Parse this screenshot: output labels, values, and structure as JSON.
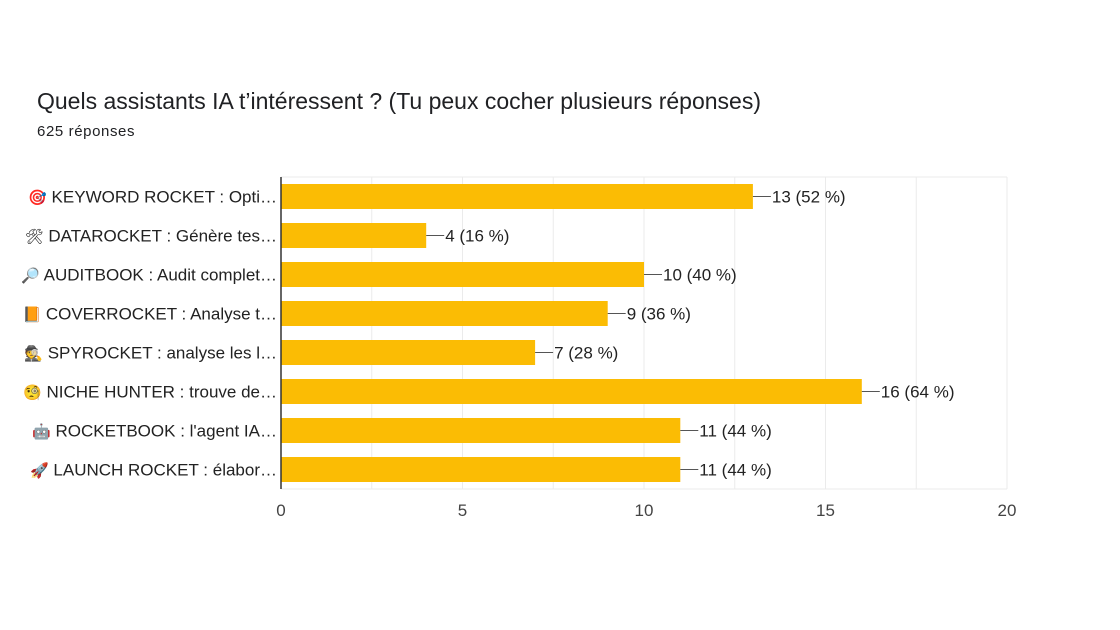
{
  "header": {
    "title": "Quels assistants IA t’intéressent ? (Tu peux cocher plusieurs réponses)",
    "responses": "625 réponses"
  },
  "colors": {
    "bar": "#FBBC04",
    "grid": "#ebebeb",
    "axis": "#333333",
    "leader": "#555555"
  },
  "chart_data": {
    "type": "bar",
    "orientation": "horizontal",
    "title": "Quels assistants IA t’intéressent ? (Tu peux cocher plusieurs réponses)",
    "subtitle": "625 réponses",
    "categories": [
      {
        "icon": "🎯",
        "label": "KEYWORD ROCKET : Opti…"
      },
      {
        "icon": "🛠",
        "label": "DATAROCKET : Génère tes…"
      },
      {
        "icon": "🔎",
        "label": "AUDITBOOK : Audit complet…"
      },
      {
        "icon": "📙",
        "label": "COVERROCKET : Analyse t…"
      },
      {
        "icon": "🕵",
        "label": "SPYROCKET : analyse les l…"
      },
      {
        "icon": "🧐",
        "label": "NICHE HUNTER : trouve de…"
      },
      {
        "icon": "🤖",
        "label": "ROCKETBOOK : l'agent IA…"
      },
      {
        "icon": "🚀",
        "label": "LAUNCH ROCKET : élabor…"
      }
    ],
    "values": [
      13,
      4,
      10,
      9,
      7,
      16,
      11,
      11
    ],
    "value_labels": [
      "13 (52 %)",
      "4 (16 %)",
      "10 (40 %)",
      "9 (36 %)",
      "7 (28 %)",
      "16 (64 %)",
      "11 (44 %)",
      "11 (44 %)"
    ],
    "xlim": [
      0,
      20
    ],
    "xticks": [
      0,
      5,
      10,
      15,
      20
    ],
    "xlabel": "",
    "ylabel": "",
    "grid": true
  }
}
